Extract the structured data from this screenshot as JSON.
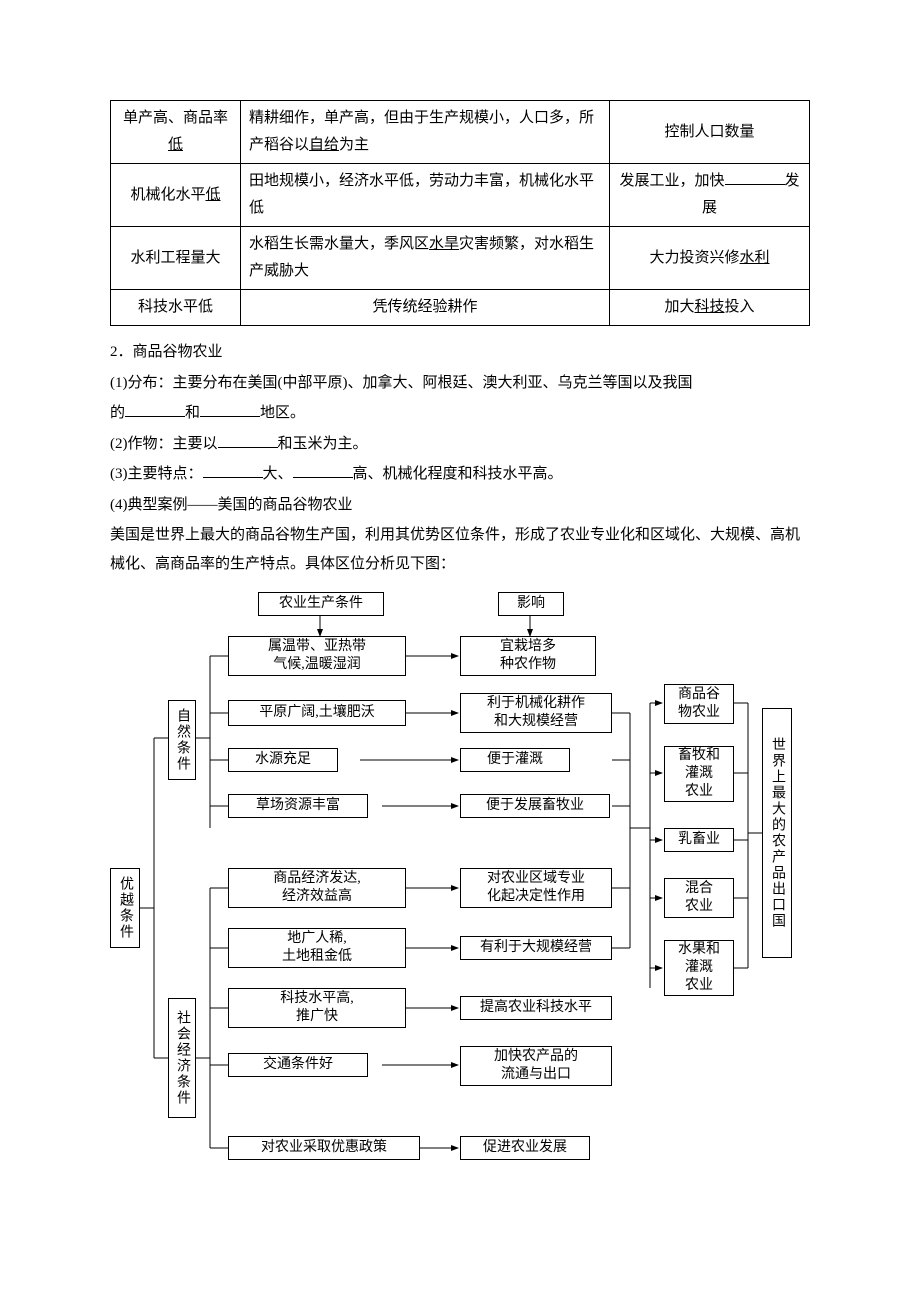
{
  "table": {
    "rows": [
      {
        "feature": "单产高、商品率<u>低</u>",
        "reason": "精耕细作，单产高，但由于生产规模小，人口多，所产稻谷以<u>自给</u>为主",
        "solution": "控制人口数量"
      },
      {
        "feature": "机械化水平<u>低</u>",
        "reason": "田地规模小，经济水平低，劳动力丰富，机械化水平低",
        "solution": "发展工业，加快<span class=\"blank\"></span>发展"
      },
      {
        "feature": "水利工程量大",
        "reason": "水稻生长需水量大，季风区<u>水旱</u>灾害频繁，对水稻生产威胁大",
        "solution": "大力投资兴修<u>水利</u>"
      },
      {
        "feature": "科技水平低",
        "reason": "凭传统经验耕作",
        "reason_align": "center",
        "solution": "加大<u>科技</u>投入"
      }
    ]
  },
  "section": {
    "heading": "2．商品谷物农业",
    "p1a": "(1)分布：主要分布在美国(中部平原)、加拿大、阿根廷、澳大利亚、乌克兰等国以及我国",
    "p1b_prefix": "的",
    "p1b_mid": "和",
    "p1b_suffix": "地区。",
    "p2_prefix": "(2)作物：主要以",
    "p2_suffix": "和玉米为主。",
    "p3_prefix": "(3)主要特点：",
    "p3_mid": "大、",
    "p3_suffix": "高、机械化程度和科技水平高。",
    "p4": "(4)典型案例——美国的商品谷物农业",
    "p5": "美国是世界上最大的商品谷物生产国，利用其优势区位条件，形成了农业专业化和区域化、大规模、高机械化、高商品率的生产特点。具体区位分析见下图："
  },
  "diagram": {
    "header_left": "农业生产条件",
    "header_right": "影响",
    "root": "优越条件",
    "cat_nat": "自然条件",
    "cat_soc": "社会经济条件",
    "nat": [
      {
        "cond": "属温带、亚热带\n气候,温暖湿润",
        "eff": "宜栽培多\n种农作物"
      },
      {
        "cond": "平原广阔,土壤肥沃",
        "eff": "利于机械化耕作\n和大规模经营"
      },
      {
        "cond": "水源充足",
        "eff": "便于灌溉"
      },
      {
        "cond": "草场资源丰富",
        "eff": "便于发展畜牧业"
      }
    ],
    "soc": [
      {
        "cond": "商品经济发达,\n经济效益高",
        "eff": "对农业区域专业\n化起决定性作用"
      },
      {
        "cond": "地广人稀,\n土地租金低",
        "eff": "有利于大规模经营"
      },
      {
        "cond": "科技水平高,\n推广快",
        "eff": "提高农业科技水平"
      },
      {
        "cond": "交通条件好",
        "eff": "加快农产品的\n流通与出口"
      },
      {
        "cond": "对农业采取优惠政策",
        "eff": "促进农业发展"
      }
    ],
    "outputs": [
      "商品谷\n物农业",
      "畜牧和\n灌溉\n农业",
      "乳畜业",
      "混合\n农业",
      "水果和\n灌溉\n农业"
    ],
    "final": "世界上最大的农产品出口国",
    "colors": {
      "line": "#000000",
      "bg": "#ffffff"
    }
  }
}
